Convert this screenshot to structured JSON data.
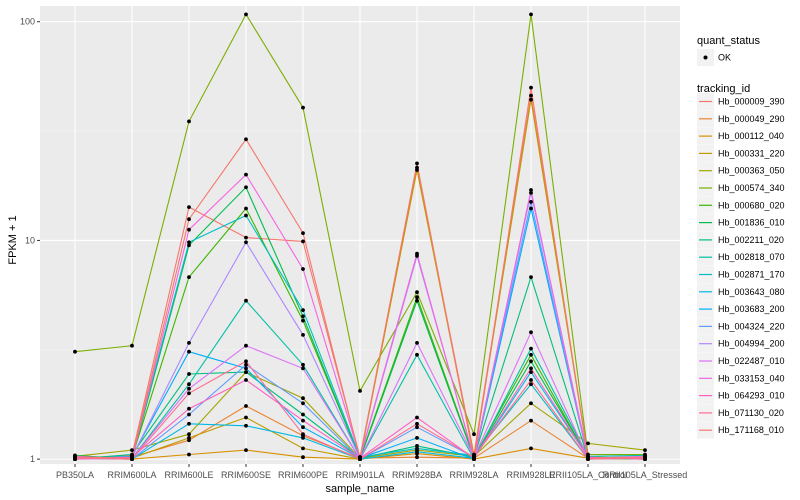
{
  "chart_data": {
    "type": "line",
    "xlabel": "sample_name",
    "ylabel": "FPKM + 1",
    "y_scale": "log10",
    "ylim": [
      0.95,
      118
    ],
    "y_ticks": [
      1,
      10,
      100
    ],
    "y_tick_labels": [
      "1",
      "10",
      "100"
    ],
    "background": "#ebebeb",
    "grid": true,
    "legend_position": "right",
    "categories": [
      "PB350LA",
      "RRIM600LA",
      "RRIM600LE",
      "RRIM600SE",
      "RRIM600PE",
      "RRIM901LA",
      "RRIM928BA",
      "RRIM928LA",
      "RRIM928LE",
      "RRII105LA_Control",
      "RRII105LA_Stressed"
    ],
    "legend_quant": {
      "title": "quant_status",
      "items": [
        "OK"
      ]
    },
    "legend_title": "tracking_id",
    "series": [
      {
        "name": "Hb_000009_390",
        "color": "#F8766D",
        "values": [
          1.01,
          1.04,
          14.2,
          10.3,
          9.9,
          1.02,
          21.5,
          1.05,
          46.0,
          1.02,
          1.01
        ]
      },
      {
        "name": "Hb_000049_290",
        "color": "#EA8331",
        "values": [
          1.0,
          1.02,
          1.22,
          1.75,
          1.28,
          1.01,
          1.02,
          1.01,
          1.5,
          1.01,
          1.0
        ]
      },
      {
        "name": "Hb_000112_040",
        "color": "#D89000",
        "values": [
          1.01,
          1.0,
          1.05,
          1.1,
          1.02,
          1.0,
          1.06,
          1.0,
          1.12,
          1.01,
          1.0
        ]
      },
      {
        "name": "Hb_000331_220",
        "color": "#C09B00",
        "values": [
          1.02,
          1.01,
          1.25,
          1.55,
          1.12,
          1.0,
          21.0,
          1.02,
          44.0,
          1.02,
          1.01
        ]
      },
      {
        "name": "Hb_000363_050",
        "color": "#A3A500",
        "values": [
          1.03,
          1.1,
          1.3,
          2.5,
          1.9,
          1.01,
          1.1,
          1.03,
          1.8,
          1.18,
          1.1
        ]
      },
      {
        "name": "Hb_000574_340",
        "color": "#7CAE00",
        "values": [
          3.1,
          3.3,
          35.0,
          108.0,
          40.5,
          2.05,
          5.8,
          1.3,
          108.0,
          1.05,
          1.05
        ]
      },
      {
        "name": "Hb_000680_020",
        "color": "#39B600",
        "values": [
          1.01,
          1.02,
          6.8,
          14.0,
          4.3,
          1.01,
          5.5,
          1.02,
          3.0,
          1.01,
          1.0
        ]
      },
      {
        "name": "Hb_001836_010",
        "color": "#00BB4E",
        "values": [
          1.04,
          1.0,
          9.5,
          17.5,
          4.5,
          1.0,
          5.3,
          1.01,
          2.8,
          1.02,
          1.01
        ]
      },
      {
        "name": "Hb_002211_020",
        "color": "#00BF7D",
        "values": [
          1.0,
          1.05,
          2.45,
          2.5,
          1.6,
          1.01,
          1.15,
          1.02,
          6.8,
          1.01,
          1.02
        ]
      },
      {
        "name": "Hb_002818_070",
        "color": "#00C1A3",
        "values": [
          1.02,
          1.01,
          2.2,
          5.3,
          2.7,
          1.0,
          3.0,
          1.0,
          3.2,
          1.03,
          1.04
        ]
      },
      {
        "name": "Hb_002871_170",
        "color": "#00BFC4",
        "values": [
          1.0,
          1.02,
          9.8,
          13.0,
          4.8,
          1.02,
          1.12,
          1.04,
          2.2,
          1.0,
          1.03
        ]
      },
      {
        "name": "Hb_003643_080",
        "color": "#00B9E3",
        "values": [
          1.01,
          1.0,
          1.45,
          1.42,
          1.25,
          1.0,
          1.08,
          1.01,
          2.5,
          1.02,
          1.0
        ]
      },
      {
        "name": "Hb_003683_200",
        "color": "#00ADFA",
        "values": [
          1.0,
          1.03,
          3.1,
          2.6,
          1.4,
          1.01,
          1.25,
          1.0,
          14.0,
          1.01,
          1.02
        ]
      },
      {
        "name": "Hb_004324_220",
        "color": "#619CFF",
        "values": [
          1.02,
          1.0,
          1.6,
          2.7,
          1.8,
          1.0,
          1.4,
          1.02,
          15.0,
          1.0,
          1.01
        ]
      },
      {
        "name": "Hb_004994_200",
        "color": "#AE87FF",
        "values": [
          1.01,
          1.02,
          3.4,
          9.8,
          3.7,
          1.01,
          8.5,
          1.01,
          16.5,
          1.02,
          1.0
        ]
      },
      {
        "name": "Hb_022487_010",
        "color": "#DB72FB",
        "values": [
          1.0,
          1.01,
          2.1,
          3.3,
          2.6,
          1.0,
          3.4,
          1.02,
          3.8,
          1.01,
          1.03
        ]
      },
      {
        "name": "Hb_033153_040",
        "color": "#F564E3",
        "values": [
          1.03,
          1.0,
          11.2,
          20.0,
          7.4,
          1.02,
          8.7,
          1.0,
          17.0,
          1.0,
          1.02
        ]
      },
      {
        "name": "Hb_064293_010",
        "color": "#FF61C3",
        "values": [
          1.0,
          1.02,
          1.7,
          2.3,
          1.5,
          1.01,
          1.55,
          1.01,
          2.6,
          1.02,
          1.0
        ]
      },
      {
        "name": "Hb_071130_020",
        "color": "#FF6C91",
        "values": [
          1.01,
          1.0,
          2.0,
          2.8,
          1.3,
          1.0,
          1.45,
          1.02,
          2.3,
          1.0,
          1.01
        ]
      },
      {
        "name": "Hb_171168_010",
        "color": "#F8766D",
        "values": [
          1.02,
          1.01,
          12.5,
          29.0,
          10.8,
          1.01,
          22.5,
          1.0,
          50.0,
          1.01,
          1.02
        ]
      }
    ]
  }
}
